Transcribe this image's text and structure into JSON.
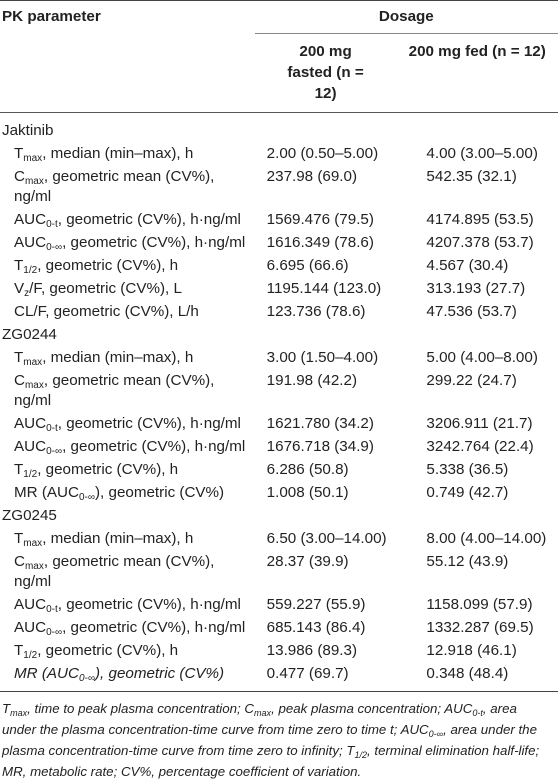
{
  "header": {
    "param_label": "PK parameter",
    "dosage_label": "Dosage",
    "col_fasted": "200 mg fasted (n = 12)",
    "col_fed": "200 mg fed (n = 12)"
  },
  "groups": [
    {
      "name": "Jaktinib",
      "rows": [
        {
          "pre": "T",
          "sub": "max",
          "post": ", median (min–max), h",
          "fasted": "2.00 (0.50–5.00)",
          "fed": "4.00 (3.00–5.00)"
        },
        {
          "pre": "C",
          "sub": "max",
          "post": ", geometric mean (CV%), ng/ml",
          "fasted": "237.98 (69.0)",
          "fed": "542.35 (32.1)"
        },
        {
          "pre": "AUC",
          "sub": "0-t",
          "post": ", geometric (CV%), h·ng/ml",
          "fasted": "1569.476 (79.5)",
          "fed": "4174.895 (53.5)"
        },
        {
          "pre": "AUC",
          "sub": "0-∞",
          "post": ", geometric (CV%), h·ng/ml",
          "fasted": "1616.349 (78.6)",
          "fed": "4207.378 (53.7)"
        },
        {
          "pre": "T",
          "sub": "1/2",
          "post": ", geometric (CV%), h",
          "fasted": "6.695 (66.6)",
          "fed": "4.567 (30.4)"
        },
        {
          "pre": "V",
          "sub": "z",
          "post": "/F, geometric (CV%), L",
          "fasted": "1195.144 (123.0)",
          "fed": "313.193 (27.7)"
        },
        {
          "pre": "CL/F, geometric (CV%), L/h",
          "sub": "",
          "post": "",
          "fasted": "123.736 (78.6)",
          "fed": "47.536 (53.7)"
        }
      ]
    },
    {
      "name": "ZG0244",
      "rows": [
        {
          "pre": "T",
          "sub": "max",
          "post": ", median (min–max), h",
          "fasted": "3.00 (1.50–4.00)",
          "fed": "5.00 (4.00–8.00)"
        },
        {
          "pre": "C",
          "sub": "max",
          "post": ", geometric mean (CV%), ng/ml",
          "fasted": "191.98 (42.2)",
          "fed": "299.22 (24.7)"
        },
        {
          "pre": "AUC",
          "sub": "0-t",
          "post": ", geometric (CV%), h·ng/ml",
          "fasted": "1621.780 (34.2)",
          "fed": "3206.911 (21.7)"
        },
        {
          "pre": "AUC",
          "sub": "0-∞",
          "post": ", geometric (CV%), h·ng/ml",
          "fasted": "1676.718 (34.9)",
          "fed": "3242.764 (22.4)"
        },
        {
          "pre": "T",
          "sub": "1/2",
          "post": ", geometric (CV%), h",
          "fasted": "6.286 (50.8)",
          "fed": "5.338 (36.5)"
        },
        {
          "pre": "MR (AUC",
          "sub": "0-∞",
          "post": "), geometric (CV%)",
          "fasted": "1.008 (50.1)",
          "fed": "0.749 (42.7)"
        }
      ]
    },
    {
      "name": "ZG0245",
      "rows": [
        {
          "pre": "T",
          "sub": "max",
          "post": ", median (min–max), h",
          "fasted": "6.50 (3.00–14.00)",
          "fed": "8.00 (4.00–14.00)"
        },
        {
          "pre": "C",
          "sub": "max",
          "post": ", geometric mean (CV%), ng/ml",
          "fasted": "28.37 (39.9)",
          "fed": "55.12 (43.9)"
        },
        {
          "pre": "AUC",
          "sub": "0-t",
          "post": ", geometric (CV%), h·ng/ml",
          "fasted": "559.227 (55.9)",
          "fed": "1158.099 (57.9)"
        },
        {
          "pre": "AUC",
          "sub": "0-∞",
          "post": ", geometric (CV%), h·ng/ml",
          "fasted": "685.143 (86.4)",
          "fed": "1332.287 (69.5)"
        },
        {
          "pre": "T",
          "sub": "1/2",
          "post": ", geometric (CV%), h",
          "fasted": "13.986 (89.3)",
          "fed": "12.918 (46.1)"
        },
        {
          "pre": "MR (AUC",
          "sub": "0-∞",
          "post": "), geometric (CV%)",
          "fasted": "0.477 (69.7)",
          "fed": "0.348 (48.4)",
          "italic": true
        }
      ]
    }
  ],
  "footnote": [
    {
      "t": "T"
    },
    {
      "s": "max"
    },
    {
      "t": ", time to peak plasma concentration; C"
    },
    {
      "s": "max"
    },
    {
      "t": ", peak plasma concentration; AUC"
    },
    {
      "s": "0-t"
    },
    {
      "t": ", area under the plasma concentration-time curve from time zero to time t; AUC"
    },
    {
      "s": "0-∞"
    },
    {
      "t": ", area under the plasma concentration-time curve from time zero to infinity; T"
    },
    {
      "s": "1/2"
    },
    {
      "t": ", terminal elimination half-life; MR, metabolic rate; CV%, percentage coefficient of variation."
    }
  ]
}
